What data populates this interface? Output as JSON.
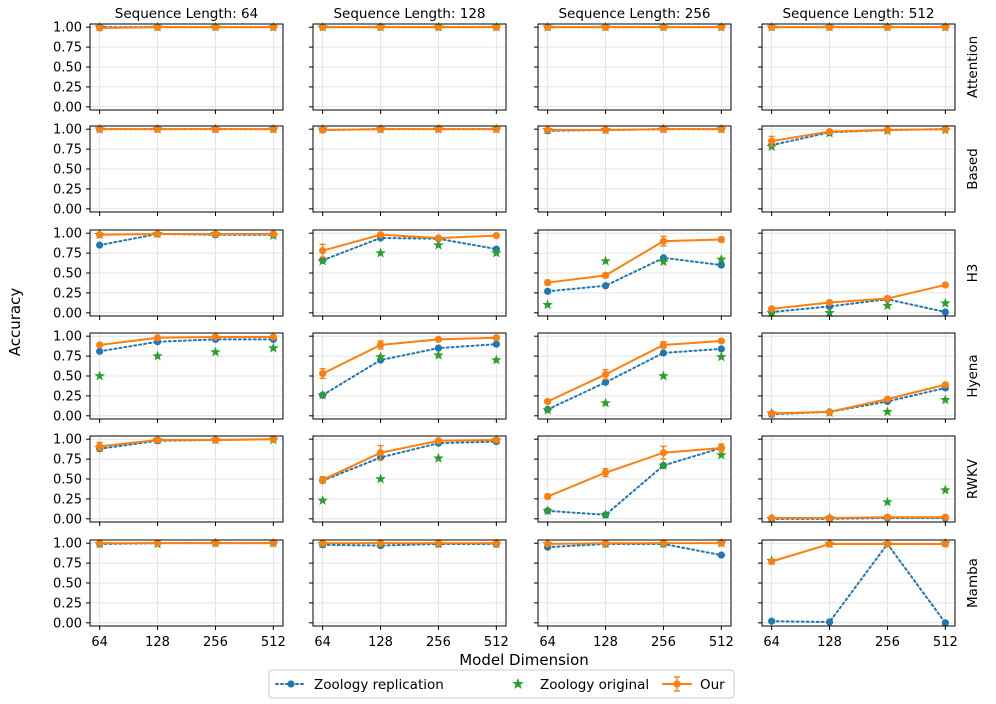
{
  "figure": {
    "ylabel": "Accuracy",
    "xlabel": "Model Dimension",
    "colors": {
      "replication": "#1f77b4",
      "original": "#2ca02c",
      "ours": "#ff7f0e",
      "grid": "#dddddd",
      "axes": "#000000"
    }
  },
  "chart_data": {
    "type": "line",
    "column_titles": [
      "Sequence Length: 64",
      "Sequence Length: 128",
      "Sequence Length: 256",
      "Sequence Length: 512"
    ],
    "row_labels": [
      "Attention",
      "Based",
      "H3",
      "Hyena",
      "RWKV",
      "Mamba"
    ],
    "x": [
      64,
      128,
      256,
      512
    ],
    "x_tick_labels": [
      "64",
      "128",
      "256",
      "512"
    ],
    "y_ticks": [
      0.0,
      0.25,
      0.5,
      0.75,
      1.0
    ],
    "y_tick_labels": [
      "0.00",
      "0.25",
      "0.50",
      "0.75",
      "1.00"
    ],
    "ylim": [
      -0.04,
      1.04
    ],
    "legend": {
      "placement": "bottom-center",
      "entries": [
        {
          "key": "replication",
          "label": "Zoology replication"
        },
        {
          "key": "original",
          "label": "Zoology original"
        },
        {
          "key": "ours",
          "label": "Our"
        }
      ]
    },
    "panels": [
      [
        {
          "rep": [
            1.0,
            1.0,
            1.0,
            1.0
          ],
          "orig": [
            1.0,
            1.0,
            1.0,
            1.0
          ],
          "ours": [
            0.99,
            1.0,
            1.0,
            1.0
          ],
          "err": [
            0.0,
            0.0,
            0.0,
            0.0
          ]
        },
        {
          "rep": [
            1.0,
            1.0,
            1.0,
            1.0
          ],
          "orig": [
            1.0,
            1.0,
            1.0,
            1.0
          ],
          "ours": [
            1.0,
            1.0,
            1.0,
            1.0
          ],
          "err": [
            0.0,
            0.0,
            0.0,
            0.0
          ]
        },
        {
          "rep": [
            1.0,
            1.0,
            1.0,
            1.0
          ],
          "orig": [
            1.0,
            1.0,
            1.0,
            1.0
          ],
          "ours": [
            1.0,
            1.0,
            1.0,
            1.0
          ],
          "err": [
            0.0,
            0.0,
            0.0,
            0.0
          ]
        },
        {
          "rep": [
            1.0,
            1.0,
            1.0,
            1.0
          ],
          "orig": [
            1.0,
            1.0,
            1.0,
            1.0
          ],
          "ours": [
            1.0,
            1.0,
            1.0,
            1.0
          ],
          "err": [
            0.0,
            0.0,
            0.0,
            0.0
          ]
        }
      ],
      [
        {
          "rep": [
            1.0,
            1.0,
            1.0,
            1.0
          ],
          "orig": [
            1.0,
            1.0,
            1.0,
            1.0
          ],
          "ours": [
            1.0,
            1.0,
            1.0,
            1.0
          ],
          "err": [
            0.0,
            0.0,
            0.0,
            0.0
          ]
        },
        {
          "rep": [
            0.99,
            1.0,
            1.0,
            1.0
          ],
          "orig": [
            1.0,
            1.0,
            1.0,
            1.0
          ],
          "ours": [
            0.99,
            1.0,
            1.0,
            1.0
          ],
          "err": [
            0.0,
            0.0,
            0.0,
            0.0
          ]
        },
        {
          "rep": [
            0.98,
            0.99,
            1.0,
            1.0
          ],
          "orig": [
            0.99,
            0.99,
            1.0,
            1.0
          ],
          "ours": [
            0.99,
            0.99,
            1.0,
            1.0
          ],
          "err": [
            0.0,
            0.0,
            0.01,
            0.0
          ]
        },
        {
          "rep": [
            0.8,
            0.96,
            0.99,
            1.0
          ],
          "orig": [
            0.78,
            0.95,
            0.98,
            0.99
          ],
          "ours": [
            0.85,
            0.97,
            0.99,
            1.0
          ],
          "err": [
            0.06,
            0.02,
            0.01,
            0.0
          ]
        }
      ],
      [
        {
          "rep": [
            0.85,
            0.99,
            0.98,
            0.98
          ],
          "orig": [
            0.98,
            0.99,
            0.99,
            0.97
          ],
          "ours": [
            0.98,
            0.99,
            0.99,
            0.99
          ],
          "err": [
            0.01,
            0.0,
            0.0,
            0.0
          ]
        },
        {
          "rep": [
            0.66,
            0.94,
            0.93,
            0.8
          ],
          "orig": [
            0.65,
            0.75,
            0.85,
            0.75
          ],
          "ours": [
            0.78,
            0.98,
            0.94,
            0.97
          ],
          "err": [
            0.08,
            0.02,
            0.01,
            0.01
          ]
        },
        {
          "rep": [
            0.27,
            0.34,
            0.69,
            0.6
          ],
          "orig": [
            0.1,
            0.65,
            0.64,
            0.67
          ],
          "ours": [
            0.38,
            0.47,
            0.9,
            0.92
          ],
          "err": [
            0.03,
            0.03,
            0.06,
            0.03
          ]
        },
        {
          "rep": [
            0.01,
            0.08,
            0.17,
            0.01
          ],
          "orig": [
            0.0,
            0.0,
            0.09,
            0.12
          ],
          "ours": [
            0.05,
            0.13,
            0.18,
            0.35
          ],
          "err": [
            0.02,
            0.02,
            0.02,
            0.01
          ]
        }
      ],
      [
        {
          "rep": [
            0.81,
            0.93,
            0.96,
            0.96
          ],
          "orig": [
            0.5,
            0.75,
            0.8,
            0.85
          ],
          "ours": [
            0.89,
            0.98,
            0.99,
            0.99
          ],
          "err": [
            0.01,
            0.02,
            0.01,
            0.0
          ]
        },
        {
          "rep": [
            0.26,
            0.7,
            0.85,
            0.9
          ],
          "orig": [
            0.26,
            0.74,
            0.76,
            0.7
          ],
          "ours": [
            0.53,
            0.89,
            0.96,
            0.98
          ],
          "err": [
            0.06,
            0.05,
            0.02,
            0.01
          ]
        },
        {
          "rep": [
            0.08,
            0.42,
            0.79,
            0.84
          ],
          "orig": [
            0.07,
            0.16,
            0.5,
            0.74
          ],
          "ours": [
            0.18,
            0.52,
            0.89,
            0.94
          ],
          "err": [
            0.02,
            0.06,
            0.04,
            0.02
          ]
        },
        {
          "rep": [
            0.02,
            0.05,
            0.18,
            0.35
          ],
          "orig": [
            0.03,
            0.04,
            0.05,
            0.2
          ],
          "ours": [
            0.03,
            0.05,
            0.21,
            0.39
          ],
          "err": [
            0.02,
            0.01,
            0.02,
            0.02
          ]
        }
      ],
      [
        {
          "rep": [
            0.88,
            0.98,
            0.99,
            1.0
          ],
          "orig": [
            0.89,
            0.99,
            0.99,
            0.99
          ],
          "ours": [
            0.91,
            0.99,
            0.99,
            1.0
          ],
          "err": [
            0.05,
            0.02,
            0.01,
            0.0
          ]
        },
        {
          "rep": [
            0.48,
            0.77,
            0.95,
            0.97
          ],
          "orig": [
            0.23,
            0.5,
            0.76,
            0.99
          ],
          "ours": [
            0.49,
            0.83,
            0.98,
            0.99
          ],
          "err": [
            0.04,
            0.09,
            0.02,
            0.01
          ]
        },
        {
          "rep": [
            0.1,
            0.05,
            0.67,
            0.89
          ],
          "orig": [
            0.1,
            0.05,
            0.67,
            0.8
          ],
          "ours": [
            0.28,
            0.58,
            0.83,
            0.89
          ],
          "err": [
            0.03,
            0.05,
            0.08,
            0.05
          ]
        },
        {
          "rep": [
            0.0,
            0.0,
            0.01,
            0.01
          ],
          "orig": [
            0.0,
            0.01,
            0.21,
            0.36
          ],
          "ours": [
            0.01,
            0.01,
            0.02,
            0.02
          ],
          "err": [
            0.01,
            0.01,
            0.01,
            0.01
          ]
        }
      ],
      [
        {
          "rep": [
            0.99,
            1.0,
            1.0,
            1.0
          ],
          "orig": [
            0.99,
            0.99,
            1.0,
            1.0
          ],
          "ours": [
            1.0,
            1.0,
            1.0,
            1.0
          ],
          "err": [
            0.0,
            0.0,
            0.0,
            0.0
          ]
        },
        {
          "rep": [
            0.98,
            0.97,
            0.99,
            0.99
          ],
          "orig": [
            0.99,
            0.99,
            0.99,
            0.99
          ],
          "ours": [
            1.0,
            1.0,
            1.0,
            1.0
          ],
          "err": [
            0.0,
            0.0,
            0.0,
            0.0
          ]
        },
        {
          "rep": [
            0.95,
            0.99,
            0.99,
            0.85
          ],
          "orig": [
            0.99,
            0.99,
            0.99,
            1.0
          ],
          "ours": [
            0.99,
            1.0,
            1.0,
            1.0
          ],
          "err": [
            0.0,
            0.0,
            0.0,
            0.0
          ]
        },
        {
          "rep": [
            0.02,
            0.01,
            0.99,
            0.0
          ],
          "orig": [
            0.78,
            0.99,
            0.99,
            1.0
          ],
          "ours": [
            0.77,
            0.99,
            0.99,
            0.99
          ],
          "err": [
            0.0,
            0.0,
            0.0,
            0.0
          ]
        }
      ]
    ]
  }
}
